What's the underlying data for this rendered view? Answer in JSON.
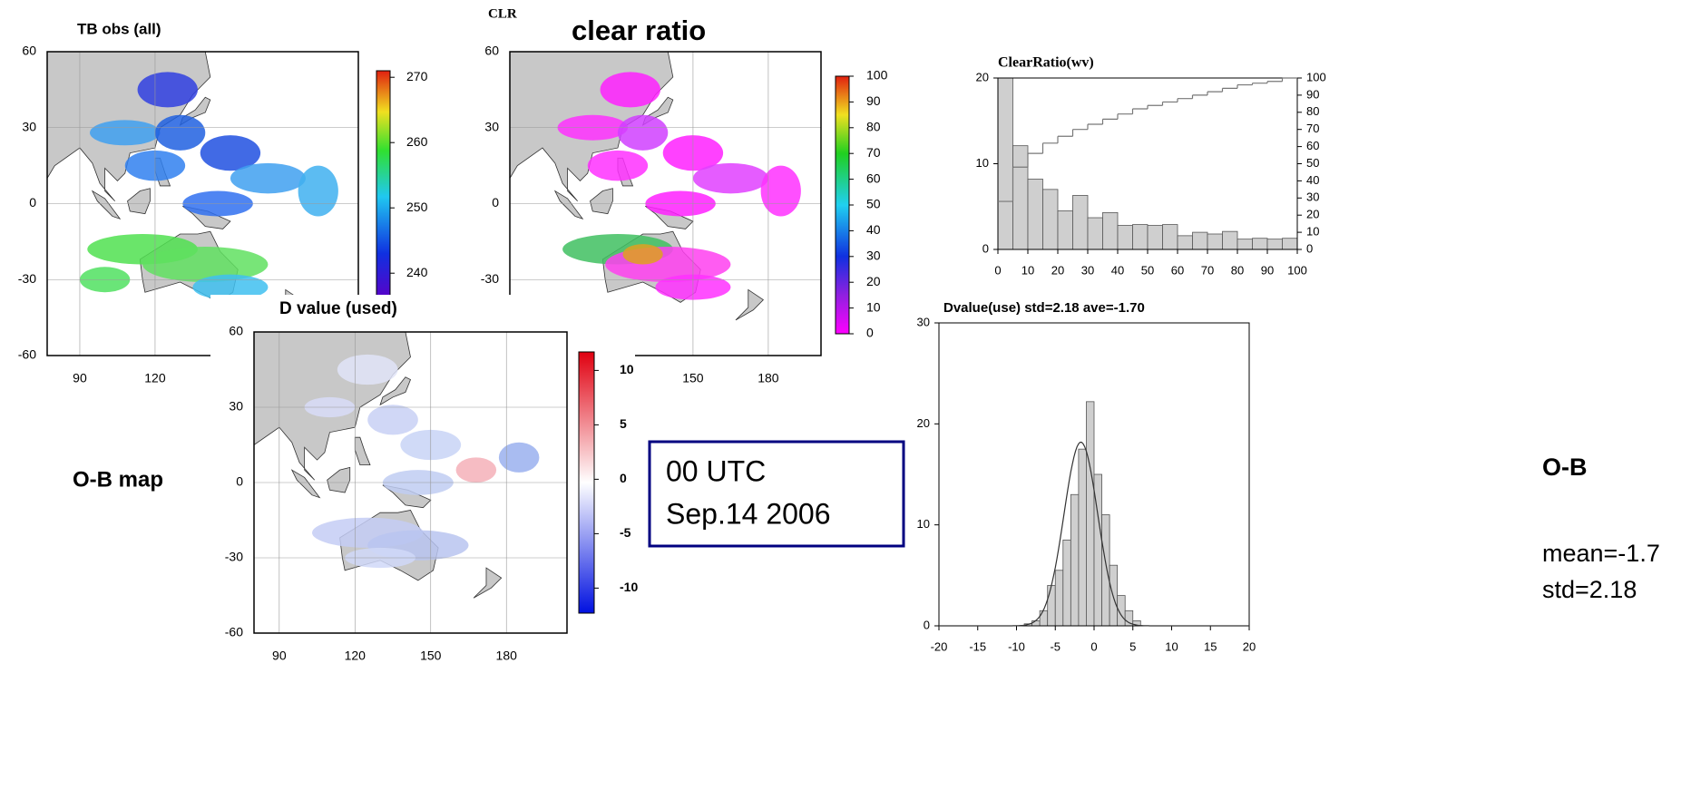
{
  "chart_data": [
    {
      "type": "map",
      "title": "TB obs (all)",
      "xlim": [
        77,
        201
      ],
      "xticks": [
        90,
        120
      ],
      "ylim": [
        -60,
        60
      ],
      "yticks": [
        -60,
        -30,
        0,
        30,
        60
      ],
      "colorbar": {
        "lim": [
          236,
          271
        ],
        "ticks": [
          240,
          250,
          260,
          270
        ]
      }
    },
    {
      "type": "map",
      "label": "CLR",
      "title": "clear ratio",
      "xlim": [
        77,
        201
      ],
      "xticks": [
        150,
        180
      ],
      "ylim": [
        -60,
        60
      ],
      "yticks": [
        -30,
        0,
        30,
        60
      ],
      "colorbar": {
        "lim": [
          0,
          100
        ],
        "ticks": [
          0,
          10,
          20,
          30,
          40,
          50,
          60,
          70,
          80,
          90,
          100
        ]
      }
    },
    {
      "type": "map",
      "title": "D value (used)",
      "annotation": "O-B map",
      "xlim": [
        80,
        204
      ],
      "xticks": [
        90,
        120,
        150,
        180
      ],
      "ylim": [
        -60,
        60
      ],
      "yticks": [
        -60,
        -30,
        0,
        30,
        60
      ],
      "colorbar": {
        "lim": [
          -12.3,
          11.7
        ],
        "ticks": [
          -10,
          -5,
          0,
          5,
          10
        ]
      }
    },
    {
      "type": "histogram",
      "title": "ClearRatio(wv)",
      "bins": [
        0,
        5,
        10,
        15,
        20,
        25,
        30,
        35,
        40,
        45,
        50,
        55,
        60,
        65,
        70,
        75,
        80,
        85,
        90,
        95,
        100
      ],
      "values": [
        20,
        12.1,
        8.2,
        7,
        4.5,
        6.3,
        3.7,
        4.3,
        2.8,
        2.9,
        2.8,
        2.9,
        1.6,
        2,
        1.8,
        2.1,
        1.2,
        1.3,
        1.2,
        1.3
      ],
      "xlim": [
        0,
        100
      ],
      "xticks": [
        0,
        10,
        20,
        30,
        40,
        50,
        60,
        70,
        80,
        90,
        100
      ],
      "ylim": [
        0,
        20
      ],
      "yticks": [
        0,
        10,
        20
      ],
      "cumulative": {
        "axis": "y2",
        "values": [
          28,
          48,
          56,
          62,
          66,
          70,
          73,
          76,
          79,
          82,
          84,
          86,
          88,
          90,
          92,
          94,
          96,
          97,
          98,
          100
        ]
      },
      "y2lim": [
        0,
        100
      ],
      "y2ticks": [
        0,
        10,
        20,
        30,
        40,
        50,
        60,
        70,
        80,
        90,
        100
      ]
    },
    {
      "type": "histogram",
      "title": "Dvalue(use) std=2.18 ave=-1.70",
      "bins": [
        -9,
        -8,
        -7,
        -6,
        -5,
        -4,
        -3,
        -2,
        -1,
        0,
        1,
        2,
        3,
        4,
        5,
        6
      ],
      "values": [
        0.2,
        0.5,
        1.5,
        4,
        5.5,
        8.5,
        13,
        17.5,
        22.2,
        15,
        11,
        6,
        3,
        1.5,
        0.5
      ],
      "curve": {
        "mean": -1.7,
        "std": 2.18,
        "peak": 18.2
      },
      "xlim": [
        -20,
        20
      ],
      "xticks": [
        -20,
        -15,
        -10,
        -5,
        0,
        5,
        10,
        15,
        20
      ],
      "ylim": [
        0,
        30
      ],
      "yticks": [
        0,
        10,
        20,
        30
      ],
      "annotations": [
        "O-B",
        "mean=-1.7",
        "std=2.18"
      ]
    }
  ],
  "time_box": {
    "lines": [
      "00 UTC",
      "Sep.14 2006"
    ]
  }
}
